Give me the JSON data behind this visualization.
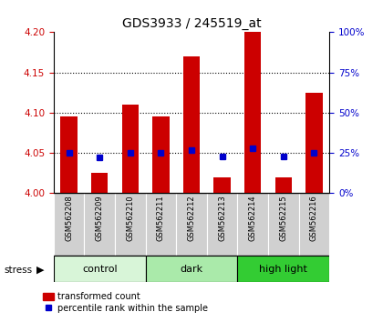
{
  "title": "GDS3933 / 245519_at",
  "samples": [
    "GSM562208",
    "GSM562209",
    "GSM562210",
    "GSM562211",
    "GSM562212",
    "GSM562213",
    "GSM562214",
    "GSM562215",
    "GSM562216"
  ],
  "red_values": [
    4.095,
    4.025,
    4.11,
    4.095,
    4.17,
    4.02,
    4.2,
    4.02,
    4.125
  ],
  "blue_values": [
    25,
    22,
    25,
    25,
    27,
    23,
    28,
    23,
    25
  ],
  "ylim_left": [
    4.0,
    4.2
  ],
  "ylim_right": [
    0,
    100
  ],
  "yticks_left": [
    4.0,
    4.05,
    4.1,
    4.15,
    4.2
  ],
  "yticks_right": [
    0,
    25,
    50,
    75,
    100
  ],
  "ytick_labels_right": [
    "0%",
    "25%",
    "50%",
    "75%",
    "100%"
  ],
  "hlines": [
    4.05,
    4.1,
    4.15
  ],
  "groups": [
    {
      "label": "control",
      "color": "#d8f5d8",
      "start": 0,
      "end": 3
    },
    {
      "label": "dark",
      "color": "#aaeaaa",
      "start": 3,
      "end": 6
    },
    {
      "label": "high light",
      "color": "#33cc33",
      "start": 6,
      "end": 9
    }
  ],
  "stress_label": "stress",
  "bar_color": "#cc0000",
  "dot_color": "#0000cc",
  "bar_width": 0.55,
  "baseline": 4.0,
  "background_color": "#ffffff",
  "plot_bg_color": "#ffffff",
  "grid_color": "#000000",
  "title_fontsize": 10,
  "tick_label_color_left": "#cc0000",
  "tick_label_color_right": "#0000cc",
  "sample_box_color": "#d0d0d0",
  "legend_red_label": "transformed count",
  "legend_blue_label": "percentile rank within the sample"
}
